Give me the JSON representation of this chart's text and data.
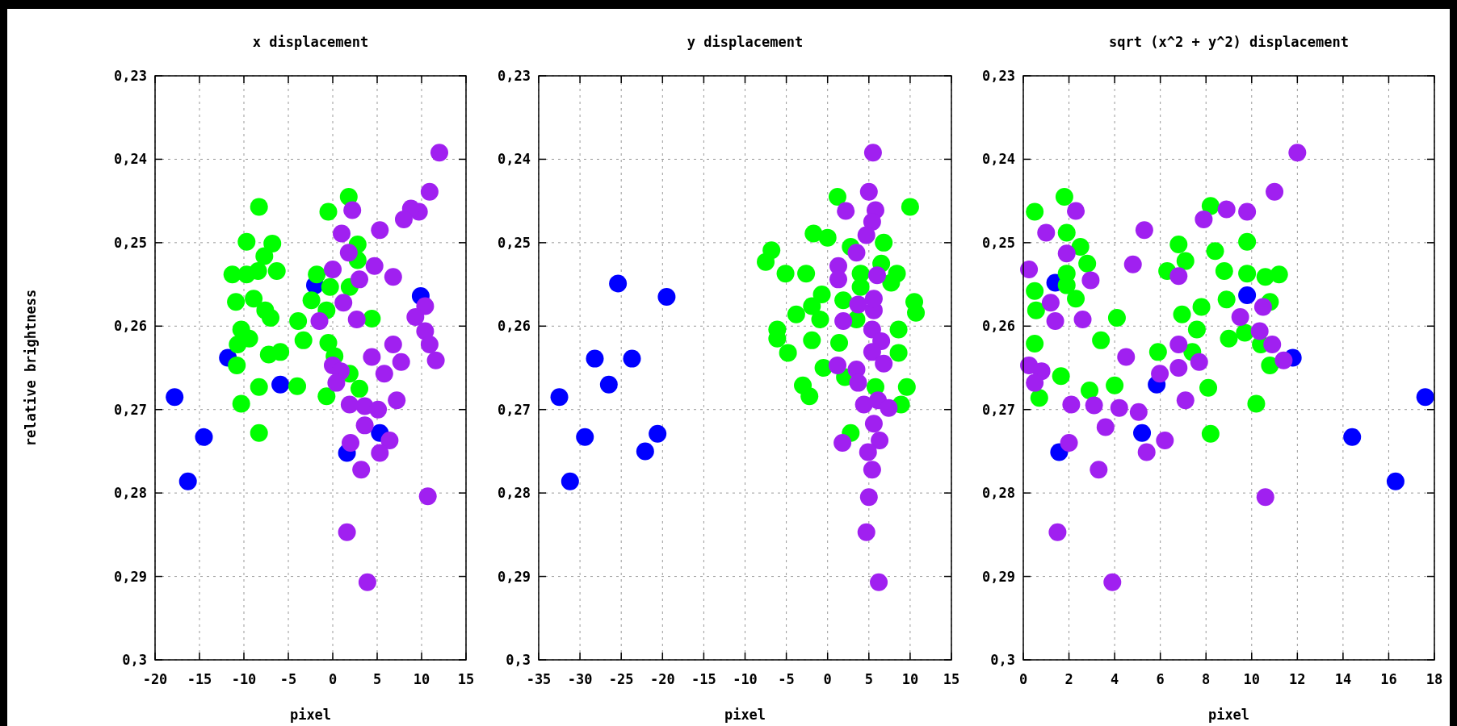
{
  "chart_data": [
    {
      "type": "scatter",
      "title": "x displacement",
      "xlabel": "pixel",
      "ylabel": "relative brightness",
      "xlim": [
        -20,
        15
      ],
      "xticks": [
        -20,
        -15,
        -10,
        -5,
        0,
        5,
        10,
        15
      ],
      "ylim": [
        0.3,
        0.23
      ],
      "yticks": [
        {
          "value": 0.23,
          "label": "0,23"
        },
        {
          "value": 0.24,
          "label": "0,24"
        },
        {
          "value": 0.25,
          "label": "0,25"
        },
        {
          "value": 0.26,
          "label": "0,26"
        },
        {
          "value": 0.27,
          "label": "0,27"
        },
        {
          "value": 0.28,
          "label": "0,28"
        },
        {
          "value": 0.29,
          "label": "0,29"
        },
        {
          "value": 0.3,
          "label": "0,3"
        }
      ],
      "grid": true,
      "marker": "circle",
      "series": [
        {
          "color": "#0000ff",
          "x": [
            -17.8,
            -14.5,
            -16.3,
            -11.8,
            -5.9,
            9.9,
            1.6,
            5.3,
            -2
          ],
          "values": [
            0.2685,
            0.2733,
            0.2786,
            0.2638,
            0.267,
            0.2564,
            0.2752,
            0.2728,
            0.2551
          ]
        },
        {
          "color": "#00ff00",
          "x": [
            -8.3,
            -0.5,
            1.8,
            -9.7,
            -6.8,
            -7.7,
            -11.3,
            -9.7,
            -8.4,
            -6.3,
            -1.8,
            2.8,
            2.8,
            -10.9,
            -8.9,
            -7.6,
            -7,
            -2.4,
            -0.3,
            1.9,
            -0.7,
            -3.9,
            -3.3,
            4.4,
            -10.3,
            -9.4,
            -10.7,
            -7.2,
            -5.9,
            -10.8,
            -0.5,
            0.2,
            1.9,
            3,
            -4,
            -8.3,
            -0.7,
            -10.3,
            -8.3
          ],
          "values": [
            0.2457,
            0.2463,
            0.2445,
            0.2499,
            0.2501,
            0.2516,
            0.2538,
            0.2538,
            0.2534,
            0.2534,
            0.2538,
            0.2502,
            0.2521,
            0.2571,
            0.2567,
            0.2581,
            0.259,
            0.2569,
            0.2553,
            0.2553,
            0.2581,
            0.2594,
            0.2617,
            0.2591,
            0.2604,
            0.2615,
            0.2622,
            0.2634,
            0.2631,
            0.2647,
            0.262,
            0.2636,
            0.2657,
            0.2675,
            0.2672,
            0.2673,
            0.2684,
            0.2693,
            0.2728
          ]
        },
        {
          "color": "#a020f0",
          "x": [
            12,
            10.9,
            9.7,
            8.8,
            8,
            2.2,
            5.3,
            1,
            1.8,
            0,
            4.7,
            6.8,
            3,
            1.2,
            2.7,
            -1.5,
            10.4,
            9.3,
            10.4,
            10.9,
            11.6,
            6.8,
            4.4,
            7.7,
            5.8,
            0,
            0.9,
            0.4,
            7.2,
            1.9,
            3.6,
            5.1,
            3.6,
            6.4,
            2,
            5.3,
            3.2,
            10.7,
            1.6,
            3.9
          ],
          "values": [
            0.2392,
            0.2439,
            0.2463,
            0.2459,
            0.2472,
            0.2461,
            0.2485,
            0.2489,
            0.2512,
            0.2532,
            0.2528,
            0.2541,
            0.2544,
            0.2572,
            0.2592,
            0.2594,
            0.2576,
            0.2589,
            0.2606,
            0.2622,
            0.2641,
            0.2622,
            0.2637,
            0.2643,
            0.2657,
            0.2647,
            0.2654,
            0.2668,
            0.2689,
            0.2694,
            0.2696,
            0.27,
            0.2719,
            0.2737,
            0.274,
            0.2752,
            0.2772,
            0.2804,
            0.2847,
            0.2907
          ]
        }
      ]
    },
    {
      "type": "scatter",
      "title": "y displacement",
      "xlabel": "pixel",
      "xlim": [
        -35,
        15
      ],
      "xticks": [
        -35,
        -30,
        -25,
        -20,
        -15,
        -10,
        -5,
        0,
        5,
        10,
        15
      ],
      "ylim": [
        0.3,
        0.23
      ],
      "yticks": [
        {
          "value": 0.23,
          "label": "0,23"
        },
        {
          "value": 0.24,
          "label": "0,24"
        },
        {
          "value": 0.25,
          "label": "0,25"
        },
        {
          "value": 0.26,
          "label": "0,26"
        },
        {
          "value": 0.27,
          "label": "0,27"
        },
        {
          "value": 0.28,
          "label": "0,28"
        },
        {
          "value": 0.29,
          "label": "0,29"
        },
        {
          "value": 0.3,
          "label": "0,3"
        }
      ],
      "grid": true,
      "marker": "circle",
      "series": [
        {
          "color": "#0000ff",
          "x": [
            -25.4,
            -19.5,
            -28.2,
            -23.7,
            -26.5,
            -32.5,
            -29.4,
            -20.6,
            -22.1,
            -31.2
          ],
          "values": [
            0.2549,
            0.2565,
            0.2639,
            0.2639,
            0.267,
            0.2685,
            0.2733,
            0.2729,
            0.275,
            0.2786
          ]
        },
        {
          "color": "#00ff00",
          "x": [
            1.2,
            10,
            -1.7,
            0,
            2.8,
            6.8,
            -6.8,
            -7.5,
            -5.1,
            -2.6,
            4,
            8.4,
            6.5,
            -0.7,
            1.9,
            -1.9,
            -3.8,
            -0.9,
            10.5,
            10.7,
            -6.1,
            -6.1,
            -4.8,
            -1.9,
            1.4,
            -0.5,
            8.6,
            8.6,
            -3,
            -2.2,
            9.6,
            8.9,
            2.8,
            2.1,
            5.8,
            3.5,
            4,
            7.7
          ],
          "values": [
            0.2445,
            0.2457,
            0.2489,
            0.2494,
            0.2505,
            0.25,
            0.2509,
            0.2523,
            0.2537,
            0.2537,
            0.2537,
            0.2537,
            0.2525,
            0.2562,
            0.2569,
            0.2576,
            0.2586,
            0.2592,
            0.2571,
            0.2584,
            0.2604,
            0.2615,
            0.2632,
            0.2617,
            0.262,
            0.265,
            0.2604,
            0.2632,
            0.2671,
            0.2684,
            0.2673,
            0.2694,
            0.2728,
            0.2661,
            0.2673,
            0.2592,
            0.2553,
            0.2548
          ]
        },
        {
          "color": "#a020f0",
          "x": [
            5.5,
            5,
            2.2,
            5.8,
            5.4,
            4.7,
            3.5,
            1.3,
            1.3,
            6,
            3.7,
            5.6,
            1.9,
            5.4,
            6.5,
            5.4,
            6.8,
            1.2,
            3.5,
            3.7,
            4.4,
            6.1,
            7.4,
            5.6,
            6.3,
            1.8,
            4.9,
            5.4,
            5,
            4.7,
            6.2,
            5.6
          ],
          "values": [
            0.2392,
            0.2439,
            0.2462,
            0.2461,
            0.2475,
            0.2491,
            0.2512,
            0.2528,
            0.2544,
            0.2539,
            0.2574,
            0.2581,
            0.2594,
            0.2604,
            0.2618,
            0.2631,
            0.2645,
            0.2647,
            0.2652,
            0.2668,
            0.2694,
            0.2689,
            0.2698,
            0.2717,
            0.2737,
            0.274,
            0.2751,
            0.2772,
            0.2805,
            0.2847,
            0.2907,
            0.2567
          ]
        }
      ]
    },
    {
      "type": "scatter",
      "title": "sqrt (x^2 + y^2) displacement",
      "xlabel": "pixel",
      "xlim": [
        0,
        18
      ],
      "xticks": [
        0,
        2,
        4,
        6,
        8,
        10,
        12,
        14,
        16,
        18
      ],
      "ylim": [
        0.3,
        0.23
      ],
      "yticks": [
        {
          "value": 0.23,
          "label": "0,23"
        },
        {
          "value": 0.24,
          "label": "0,24"
        },
        {
          "value": 0.25,
          "label": "0,25"
        },
        {
          "value": 0.26,
          "label": "0,26"
        },
        {
          "value": 0.27,
          "label": "0,27"
        },
        {
          "value": 0.28,
          "label": "0,28"
        },
        {
          "value": 0.29,
          "label": "0,29"
        },
        {
          "value": 0.3,
          "label": "0,3"
        }
      ],
      "grid": true,
      "marker": "circle",
      "series": [
        {
          "color": "#0000ff",
          "x": [
            17.6,
            14.4,
            16.3,
            1.4,
            9.8,
            11.8,
            5.84,
            5.2,
            1.57
          ],
          "values": [
            0.2685,
            0.2733,
            0.2786,
            0.2548,
            0.2563,
            0.2638,
            0.267,
            0.2728,
            0.2751
          ]
        },
        {
          "color": "#00ff00",
          "x": [
            0.5,
            1.8,
            1.9,
            2.5,
            2.8,
            1.9,
            1.9,
            0.5,
            2.3,
            0.56,
            4.1,
            3.4,
            0.5,
            1.65,
            0.7,
            2.9,
            4,
            8.2,
            6.8,
            7.1,
            8.4,
            9.8,
            6.3,
            8.8,
            9.8,
            10.6,
            11.2,
            8.9,
            7.8,
            6.95,
            10.8,
            7.6,
            9,
            9.7,
            5.9,
            7.4,
            10.4,
            10.8,
            8.1,
            10.2,
            8.2
          ],
          "values": [
            0.2463,
            0.2445,
            0.2488,
            0.2505,
            0.2525,
            0.2537,
            0.2551,
            0.2558,
            0.2567,
            0.2581,
            0.259,
            0.2617,
            0.2621,
            0.266,
            0.2686,
            0.2677,
            0.2671,
            0.2456,
            0.2502,
            0.2522,
            0.251,
            0.2499,
            0.2534,
            0.2534,
            0.2537,
            0.2541,
            0.2538,
            0.2568,
            0.2577,
            0.2586,
            0.2571,
            0.2604,
            0.2615,
            0.2608,
            0.2631,
            0.2631,
            0.2622,
            0.2647,
            0.2674,
            0.2693,
            0.2729
          ]
        },
        {
          "color": "#a020f0",
          "x": [
            12,
            11,
            8.9,
            9.8,
            7.9,
            2.3,
            1,
            5.3,
            1.9,
            0.25,
            4.8,
            2.95,
            6.8,
            1.2,
            10.5,
            9.5,
            1.4,
            2.6,
            10.35,
            10.9,
            11.4,
            6.8,
            4.5,
            7.7,
            6.8,
            5.98,
            0.25,
            0.8,
            0.5,
            7.1,
            2.1,
            3.1,
            4.2,
            5.05,
            3.6,
            6.2,
            2,
            5.4,
            3.3,
            10.6,
            1.5,
            3.9
          ],
          "values": [
            0.2392,
            0.2439,
            0.246,
            0.2463,
            0.2472,
            0.2462,
            0.2488,
            0.2485,
            0.2513,
            0.2532,
            0.2526,
            0.2545,
            0.254,
            0.2572,
            0.2577,
            0.2589,
            0.2594,
            0.2592,
            0.2606,
            0.2622,
            0.2641,
            0.2622,
            0.2637,
            0.2643,
            0.265,
            0.2657,
            0.2647,
            0.2654,
            0.2668,
            0.2689,
            0.2694,
            0.2695,
            0.2698,
            0.2703,
            0.2721,
            0.2737,
            0.274,
            0.2751,
            0.2772,
            0.2805,
            0.2847,
            0.2907
          ]
        }
      ]
    }
  ]
}
